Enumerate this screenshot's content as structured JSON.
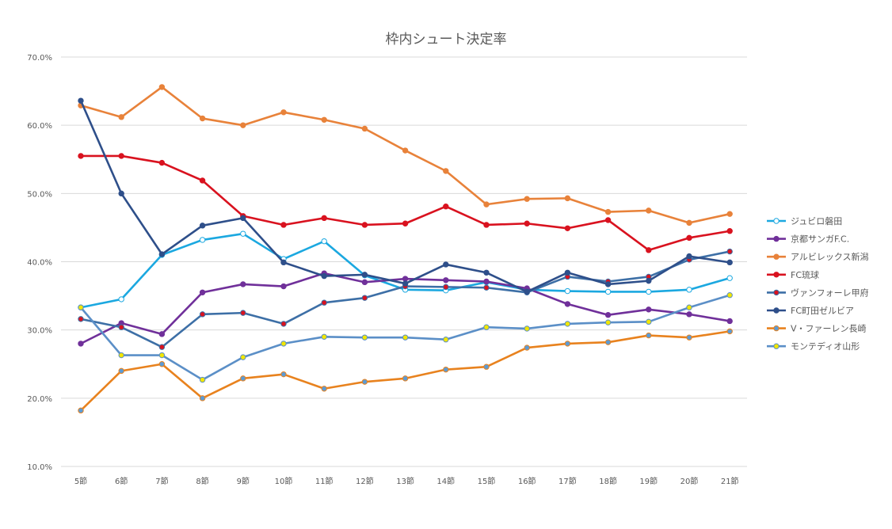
{
  "chart_data": {
    "type": "line",
    "title": "枠内シュート決定率",
    "xlabel": "",
    "ylabel": "",
    "ylim": [
      10,
      70
    ],
    "yticks": [
      "10.0%",
      "20.0%",
      "30.0%",
      "40.0%",
      "50.0%",
      "60.0%",
      "70.0%"
    ],
    "categories": [
      "5節",
      "6節",
      "7節",
      "8節",
      "9節",
      "10節",
      "11節",
      "12節",
      "13節",
      "14節",
      "15節",
      "16節",
      "17節",
      "18節",
      "19節",
      "20節",
      "21節"
    ],
    "grid": true,
    "legend": "right",
    "series": [
      {
        "name": "ジュビロ磐田",
        "color": "#1ba8e0",
        "marker_fill": "#ffffff",
        "values": [
          33.3,
          34.5,
          41.0,
          43.2,
          44.1,
          40.4,
          43.0,
          38.0,
          35.9,
          35.8,
          37.0,
          35.9,
          35.7,
          35.6,
          35.6,
          35.9,
          37.6
        ]
      },
      {
        "name": "京都サンガF.C.",
        "color": "#70309a",
        "marker_fill": "#70309a",
        "values": [
          28.0,
          31.0,
          29.4,
          35.5,
          36.7,
          36.4,
          38.3,
          37.0,
          37.5,
          37.3,
          37.1,
          36.1,
          33.8,
          32.2,
          33.0,
          32.3,
          31.3
        ]
      },
      {
        "name": "アルビレックス新潟",
        "color": "#e8823a",
        "marker_fill": "#e8823a",
        "values": [
          62.9,
          61.2,
          65.6,
          61.0,
          60.0,
          61.9,
          60.8,
          59.5,
          56.3,
          53.3,
          48.4,
          49.2,
          49.3,
          47.3,
          47.5,
          45.7,
          47.0
        ]
      },
      {
        "name": "FC琉球",
        "color": "#d9121f",
        "marker_fill": "#d9121f",
        "values": [
          55.5,
          55.5,
          54.5,
          51.9,
          46.7,
          45.4,
          46.4,
          45.4,
          45.6,
          48.1,
          45.4,
          45.6,
          44.9,
          46.1,
          41.7,
          43.5,
          44.5
        ]
      },
      {
        "name": "ヴァンフォーレ甲府",
        "color": "#3d6fa6",
        "marker_fill": "#d9121f",
        "values": [
          31.6,
          30.4,
          27.5,
          32.3,
          32.5,
          30.9,
          34.0,
          34.7,
          36.4,
          36.3,
          36.2,
          35.5,
          37.8,
          37.1,
          37.8,
          40.3,
          41.5
        ]
      },
      {
        "name": "FC町田ゼルビア",
        "color": "#2e4f8a",
        "marker_fill": "#2e4f8a",
        "values": [
          63.6,
          50.0,
          41.1,
          45.3,
          46.4,
          39.9,
          37.9,
          38.1,
          36.8,
          39.6,
          38.4,
          35.6,
          38.4,
          36.7,
          37.2,
          40.8,
          39.9
        ]
      },
      {
        "name": "V・ファーレン長崎",
        "color": "#e8821e",
        "marker_fill": "#5b9bd5",
        "values": [
          18.2,
          24.0,
          25.0,
          20.0,
          22.9,
          23.5,
          21.4,
          22.4,
          22.9,
          24.2,
          24.6,
          27.4,
          28.0,
          28.2,
          29.2,
          28.9,
          29.8
        ]
      },
      {
        "name": "モンテディオ山形",
        "color": "#5b8fc7",
        "marker_fill": "#f2e600",
        "values": [
          33.3,
          26.3,
          26.3,
          22.7,
          26.0,
          28.0,
          29.0,
          28.9,
          28.9,
          28.6,
          30.4,
          30.2,
          30.9,
          31.1,
          31.2,
          33.3,
          35.1
        ]
      }
    ]
  }
}
